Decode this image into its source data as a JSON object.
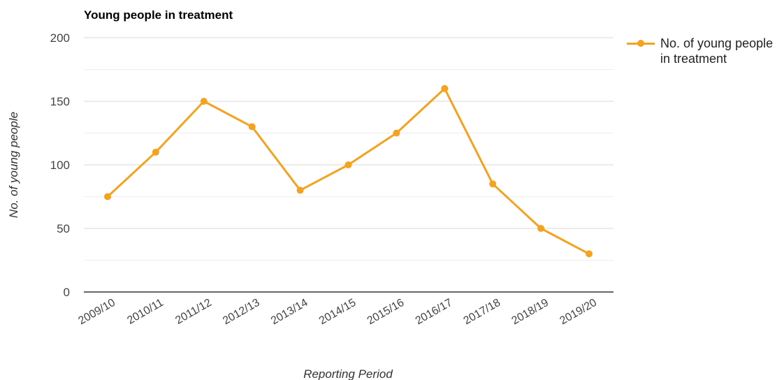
{
  "chart_data": {
    "type": "line",
    "title": "Young people in treatment",
    "xlabel": "Reporting Period",
    "ylabel": "No. of young people",
    "categories": [
      "2009/10",
      "2010/11",
      "2011/12",
      "2012/13",
      "2013/14",
      "2014/15",
      "2015/16",
      "2016/17",
      "2017/18",
      "2018/19",
      "2019/20"
    ],
    "series": [
      {
        "name": "No. of young people in treatment",
        "values": [
          75,
          110,
          150,
          130,
          80,
          100,
          125,
          160,
          85,
          50,
          30
        ]
      }
    ],
    "ylim": [
      0,
      200
    ],
    "yticks": [
      0,
      50,
      100,
      150,
      200
    ],
    "grid": true,
    "legend_position": "right",
    "colors": {
      "series": "#f4a21f",
      "grid": "#d9d9d9",
      "minor_grid": "#eeeeee",
      "axis": "#333333"
    }
  }
}
